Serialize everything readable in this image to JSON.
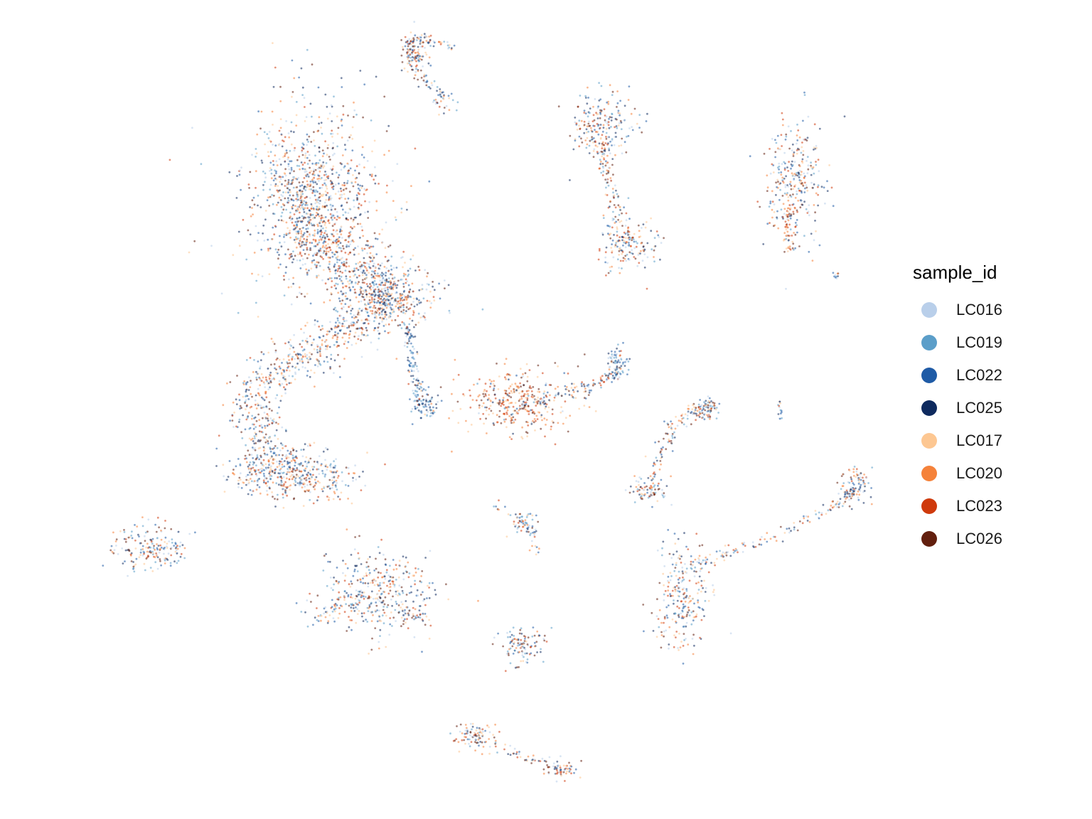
{
  "chart_data": {
    "type": "scatter",
    "title": "",
    "xlabel": "",
    "ylabel": "",
    "axes_visible": false,
    "grid": false,
    "legend_position": "right",
    "legend_title": "sample_id",
    "series": [
      {
        "name": "LC016",
        "color": "#b9cfea"
      },
      {
        "name": "LC019",
        "color": "#5b9ec9"
      },
      {
        "name": "LC022",
        "color": "#1f5ba6"
      },
      {
        "name": "LC025",
        "color": "#0e2a5e"
      },
      {
        "name": "LC017",
        "color": "#fdc792"
      },
      {
        "name": "LC020",
        "color": "#f5823a"
      },
      {
        "name": "LC023",
        "color": "#cf3a0c"
      },
      {
        "name": "LC026",
        "color": "#621f0e"
      }
    ]
  }
}
